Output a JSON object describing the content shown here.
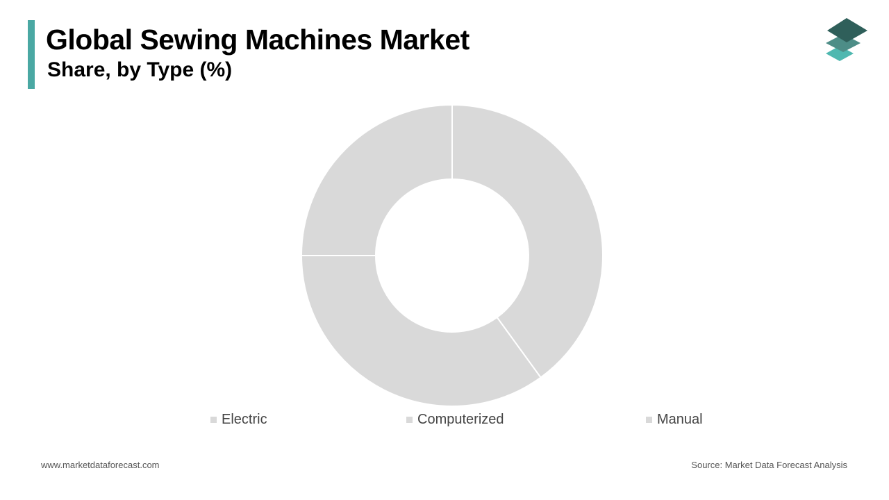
{
  "header": {
    "title": "Global Sewing Machines Market",
    "subtitle": "Share, by Type (%)"
  },
  "logo": {
    "icon": "stacked-layers-icon",
    "colors": [
      "#2f5f5a",
      "#4d8d87",
      "#4fb8b0"
    ]
  },
  "chart_data": {
    "type": "pie",
    "style": "donut",
    "title": "Global Sewing Machines Market",
    "subtitle": "Share, by Type (%)",
    "categories": [
      "Electric",
      "Computerized",
      "Manual"
    ],
    "values": [
      40,
      35,
      25
    ],
    "colors": [
      "#d9d9d9",
      "#d9d9d9",
      "#d9d9d9"
    ],
    "legend": "bottom"
  },
  "footer": {
    "website": "www.marketdataforecast.com",
    "source": "Source: Market Data Forecast Analysis"
  },
  "colors": {
    "accent": "#4aa8a3",
    "slice": "#d9d9d9",
    "slice_separator": "#ffffff"
  }
}
